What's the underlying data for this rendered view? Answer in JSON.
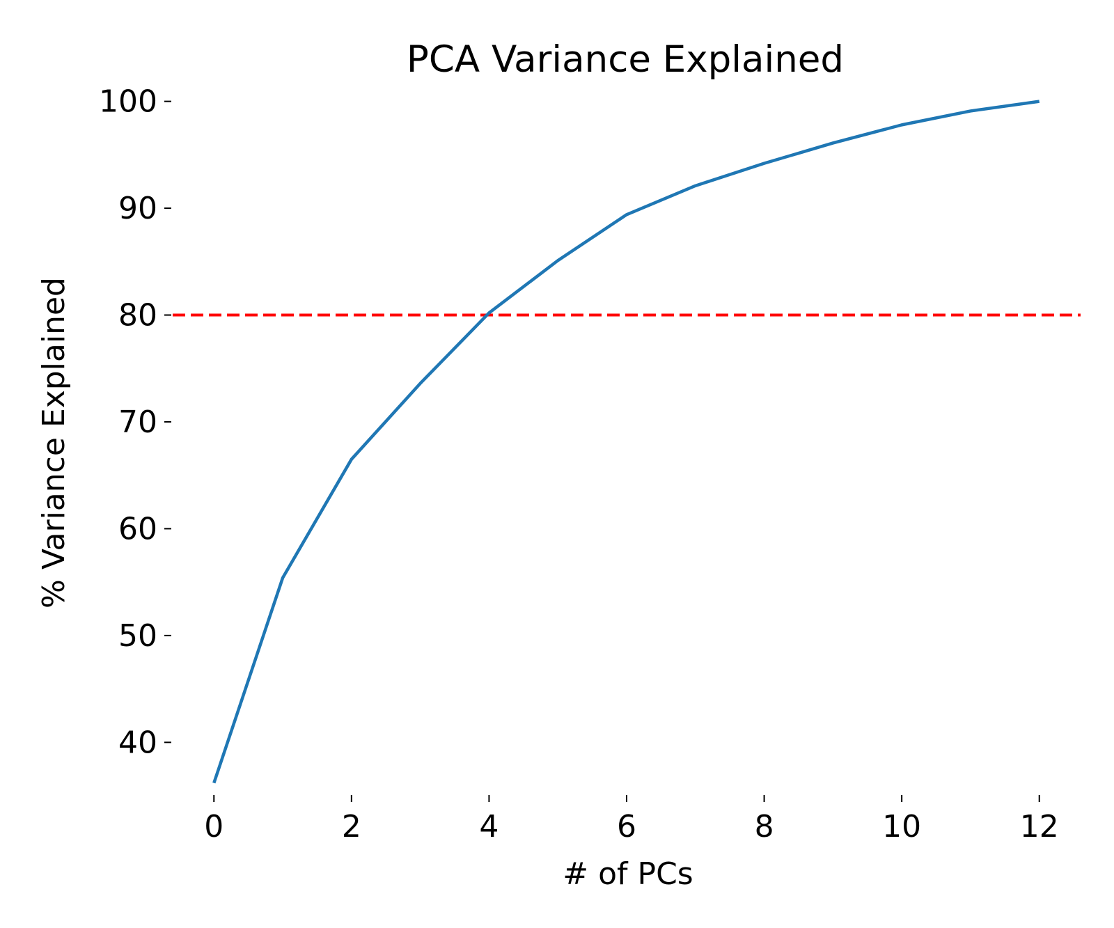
{
  "chart_data": {
    "type": "line",
    "title": "PCA Variance Explained",
    "xlabel": "# of PCs",
    "ylabel": "% Variance Explained",
    "x": [
      0,
      1,
      2,
      3,
      4,
      5,
      6,
      7,
      8,
      9,
      10,
      11,
      12
    ],
    "series": [
      {
        "values": [
          36.2,
          55.4,
          66.5,
          73.6,
          80.2,
          85.1,
          89.4,
          92.1,
          94.2,
          96.1,
          97.8,
          99.1,
          100.0
        ],
        "color": "#1f77b4"
      }
    ],
    "reference_line": {
      "y": 80,
      "color": "#ff0000",
      "style": "dashed"
    },
    "xticks": [
      0,
      2,
      4,
      6,
      8,
      10,
      12
    ],
    "yticks": [
      40,
      50,
      60,
      70,
      80,
      90,
      100
    ],
    "xlim": [
      -0.6,
      12.6
    ],
    "ylim": [
      35.2,
      101.8
    ],
    "grid": false,
    "legend": "none",
    "frame": "none"
  }
}
